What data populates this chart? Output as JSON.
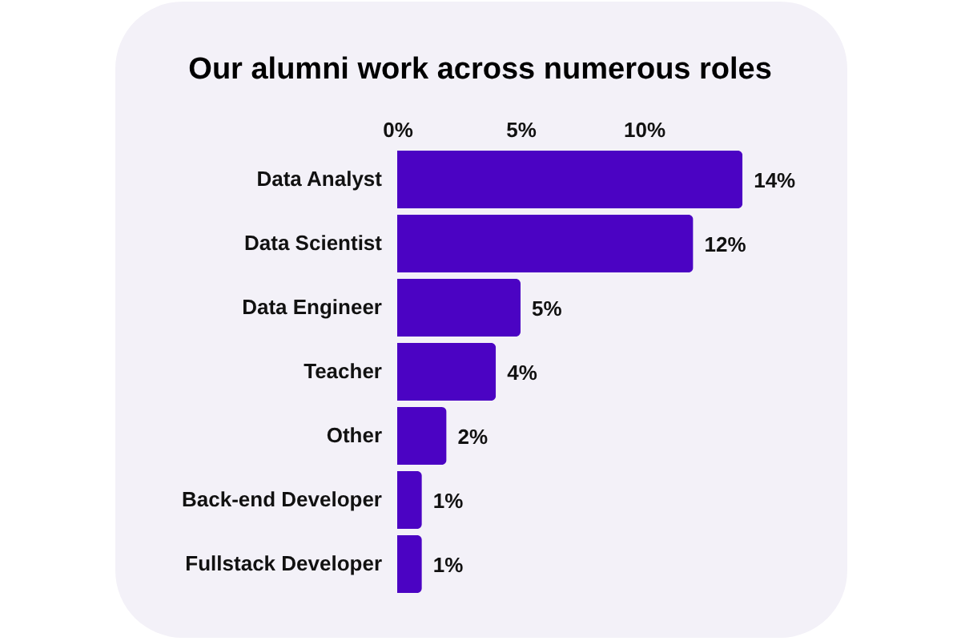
{
  "chart_data": {
    "type": "bar",
    "orientation": "horizontal",
    "title": "Our alumni work across numerous roles",
    "categories": [
      "Data Analyst",
      "Data Scientist",
      "Data Engineer",
      "Teacher",
      "Other",
      "Back-end Developer",
      "Fullstack Developer"
    ],
    "values": [
      14,
      12,
      5,
      4,
      2,
      1,
      1
    ],
    "value_labels": [
      "14%",
      "12%",
      "5%",
      "4%",
      "2%",
      "1%",
      "1%"
    ],
    "color": "#4b03c3",
    "xlim": [
      0,
      14
    ],
    "xticks": [
      {
        "value": 0,
        "label": "0%"
      },
      {
        "value": 5,
        "label": "5%"
      },
      {
        "value": 10,
        "label": "10%"
      }
    ]
  }
}
